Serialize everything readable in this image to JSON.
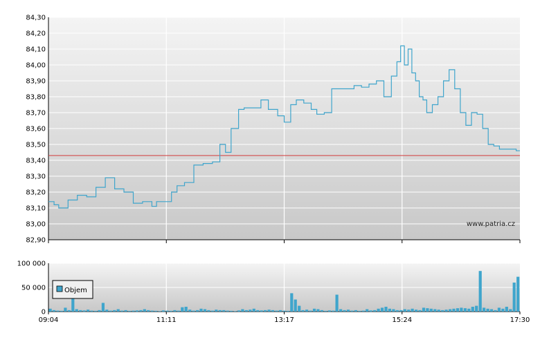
{
  "chart_data": [
    {
      "type": "line",
      "title": "",
      "xlabel": "",
      "ylabel": "",
      "ylim": [
        82.9,
        84.3
      ],
      "y_ticks": [
        "82,90",
        "83,00",
        "83,10",
        "83,20",
        "83,30",
        "83,40",
        "83,50",
        "83,60",
        "83,70",
        "83,80",
        "83,90",
        "84,00",
        "84,10",
        "84,20",
        "84,30"
      ],
      "x_ticks": [
        "09:04",
        "11:11",
        "13:17",
        "15:24",
        "17:30"
      ],
      "x": [
        "09:04",
        "09:10",
        "09:15",
        "09:25",
        "09:35",
        "09:45",
        "09:55",
        "10:05",
        "10:15",
        "10:25",
        "10:35",
        "10:45",
        "10:55",
        "11:00",
        "11:05",
        "11:11",
        "11:16",
        "11:22",
        "11:30",
        "11:40",
        "11:50",
        "12:00",
        "12:08",
        "12:14",
        "12:20",
        "12:28",
        "12:34",
        "12:40",
        "12:46",
        "12:52",
        "13:00",
        "13:10",
        "13:17",
        "13:24",
        "13:30",
        "13:38",
        "13:46",
        "13:52",
        "14:00",
        "14:08",
        "14:16",
        "14:24",
        "14:32",
        "14:40",
        "14:48",
        "14:56",
        "15:04",
        "15:12",
        "15:18",
        "15:22",
        "15:26",
        "15:30",
        "15:34",
        "15:38",
        "15:42",
        "15:46",
        "15:50",
        "15:56",
        "16:02",
        "16:08",
        "16:14",
        "16:20",
        "16:26",
        "16:32",
        "16:38",
        "16:44",
        "16:50",
        "16:56",
        "17:02",
        "17:08",
        "17:14",
        "17:20",
        "17:26",
        "17:30"
      ],
      "values": [
        83.14,
        83.12,
        83.1,
        83.15,
        83.18,
        83.17,
        83.23,
        83.29,
        83.22,
        83.2,
        83.13,
        83.14,
        83.11,
        83.14,
        83.14,
        83.14,
        83.2,
        83.24,
        83.26,
        83.37,
        83.38,
        83.39,
        83.5,
        83.45,
        83.6,
        83.72,
        83.73,
        83.73,
        83.73,
        83.78,
        83.72,
        83.68,
        83.64,
        83.75,
        83.78,
        83.76,
        83.72,
        83.69,
        83.7,
        83.85,
        83.85,
        83.85,
        83.87,
        83.86,
        83.88,
        83.9,
        83.8,
        83.93,
        84.02,
        84.12,
        84.0,
        84.1,
        83.95,
        83.9,
        83.8,
        83.78,
        83.7,
        83.75,
        83.8,
        83.9,
        83.97,
        83.85,
        83.7,
        83.62,
        83.7,
        83.69,
        83.6,
        83.5,
        83.49,
        83.47,
        83.47,
        83.47,
        83.46,
        83.46
      ],
      "reference_line": 83.43,
      "colors": {
        "line": "#3fa5cc",
        "reference": "#d23a3a"
      }
    },
    {
      "type": "bar",
      "series": [
        {
          "name": "Objem",
          "values": [
            6000,
            3000,
            2000,
            1500,
            8000,
            3000,
            36000,
            5000,
            3000,
            2500,
            4000,
            2000,
            1500,
            3000,
            18000,
            4000,
            2000,
            3000,
            5000,
            2000,
            3000,
            1500,
            2000,
            2500,
            3000,
            5000,
            3000,
            2000,
            1500,
            1000,
            2500,
            2000,
            1500,
            3000,
            2000,
            9000,
            10000,
            4000,
            2000,
            3000,
            6000,
            5000,
            3000,
            2000,
            4000,
            3000,
            3000,
            2000,
            1500,
            1000,
            2500,
            5000,
            3000,
            4000,
            6000,
            3000,
            2500,
            3000,
            4000,
            3000,
            2000,
            3000,
            2000,
            1500,
            38000,
            25000,
            12000,
            3000,
            4000,
            2000,
            6000,
            5000,
            3000,
            1500,
            2500,
            2000,
            35000,
            5000,
            3000,
            4000,
            2000,
            3000,
            1500,
            2000,
            5000,
            2500,
            3000,
            6000,
            8000,
            10000,
            6000,
            5000,
            3000,
            3000,
            5000,
            4000,
            6000,
            4000,
            3000,
            8000,
            7000,
            6000,
            5000,
            4000,
            3000,
            4000,
            5000,
            6000,
            7000,
            8000,
            7000,
            6000,
            10000,
            12000,
            84000,
            8000,
            6000,
            5000,
            3000,
            8000,
            6000,
            10000,
            5000,
            60000,
            72000
          ]
        }
      ],
      "ylim": [
        0,
        100000
      ],
      "y_ticks": [
        "0",
        "50 000",
        "100 000"
      ],
      "x_ticks": [
        "09:04",
        "11:11",
        "13:17",
        "15:24",
        "17:30"
      ],
      "legend": "top-left",
      "colors": {
        "bar": "#3fa5cc"
      }
    }
  ],
  "watermark": "www.patria.cz",
  "icons": {
    "legend_swatch": "square-swatch-icon"
  }
}
